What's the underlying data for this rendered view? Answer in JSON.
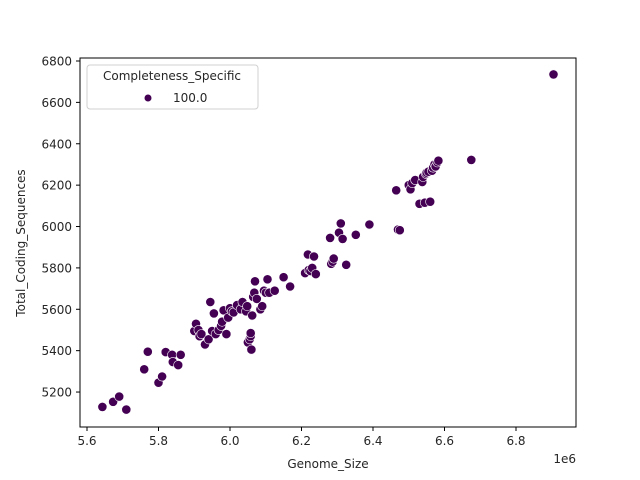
{
  "chart_data": {
    "type": "scatter",
    "title": "",
    "xlabel": "Genome_Size",
    "ylabel": "Total_Coding_Sequences",
    "x_offset_label": "1e6",
    "xlim": [
      5.58,
      6.97
    ],
    "ylim": [
      5020,
      6815
    ],
    "x_ticks": [
      5.6,
      5.8,
      6.0,
      6.2,
      6.4,
      6.6,
      6.8
    ],
    "x_tick_labels": [
      "5.6",
      "5.8",
      "6.0",
      "6.2",
      "6.4",
      "6.6",
      "6.8"
    ],
    "y_ticks": [
      5200,
      5400,
      5600,
      5800,
      6000,
      6200,
      6400,
      6600,
      6800
    ],
    "y_tick_labels": [
      "5200",
      "5400",
      "5600",
      "5800",
      "6000",
      "6200",
      "6400",
      "6600",
      "6800"
    ],
    "grid": false,
    "legend": {
      "title": "Completeness_Specific",
      "position": "upper left",
      "entries": [
        {
          "label": "100.0",
          "color": "#440154"
        }
      ]
    },
    "series": [
      {
        "name": "100.0",
        "color": "#440154",
        "x_units": "1e6",
        "points": [
          [
            5.643,
            5128
          ],
          [
            5.673,
            5153
          ],
          [
            5.69,
            5178
          ],
          [
            5.71,
            5115
          ],
          [
            5.76,
            5310
          ],
          [
            5.77,
            5395
          ],
          [
            5.8,
            5245
          ],
          [
            5.81,
            5275
          ],
          [
            5.82,
            5393
          ],
          [
            5.838,
            5380
          ],
          [
            5.84,
            5345
          ],
          [
            5.855,
            5330
          ],
          [
            5.862,
            5380
          ],
          [
            5.9,
            5495
          ],
          [
            5.905,
            5530
          ],
          [
            5.912,
            5500
          ],
          [
            5.915,
            5470
          ],
          [
            5.92,
            5480
          ],
          [
            5.93,
            5430
          ],
          [
            5.94,
            5455
          ],
          [
            5.945,
            5635
          ],
          [
            5.95,
            5495
          ],
          [
            5.955,
            5580
          ],
          [
            5.96,
            5480
          ],
          [
            5.968,
            5500
          ],
          [
            5.975,
            5520
          ],
          [
            5.978,
            5540
          ],
          [
            5.982,
            5595
          ],
          [
            5.99,
            5480
          ],
          [
            5.995,
            5560
          ],
          [
            6.0,
            5605
          ],
          [
            6.005,
            5590
          ],
          [
            6.01,
            5585
          ],
          [
            6.02,
            5620
          ],
          [
            6.03,
            5600
          ],
          [
            6.035,
            5635
          ],
          [
            6.045,
            5590
          ],
          [
            6.048,
            5615
          ],
          [
            6.05,
            5440
          ],
          [
            6.055,
            5455
          ],
          [
            6.058,
            5470
          ],
          [
            6.058,
            5485
          ],
          [
            6.06,
            5405
          ],
          [
            6.062,
            5570
          ],
          [
            6.065,
            5660
          ],
          [
            6.068,
            5680
          ],
          [
            6.07,
            5735
          ],
          [
            6.075,
            5650
          ],
          [
            6.085,
            5600
          ],
          [
            6.09,
            5615
          ],
          [
            6.095,
            5690
          ],
          [
            6.1,
            5680
          ],
          [
            6.105,
            5745
          ],
          [
            6.11,
            5680
          ],
          [
            6.125,
            5690
          ],
          [
            6.15,
            5755
          ],
          [
            6.168,
            5710
          ],
          [
            6.21,
            5775
          ],
          [
            6.218,
            5865
          ],
          [
            6.22,
            5790
          ],
          [
            6.225,
            5785
          ],
          [
            6.23,
            5800
          ],
          [
            6.235,
            5855
          ],
          [
            6.24,
            5770
          ],
          [
            6.28,
            5945
          ],
          [
            6.283,
            5820
          ],
          [
            6.287,
            5830
          ],
          [
            6.29,
            5845
          ],
          [
            6.305,
            5970
          ],
          [
            6.31,
            6015
          ],
          [
            6.315,
            5940
          ],
          [
            6.325,
            5815
          ],
          [
            6.352,
            5960
          ],
          [
            6.39,
            6010
          ],
          [
            6.465,
            6175
          ],
          [
            6.47,
            5985
          ],
          [
            6.475,
            5982
          ],
          [
            6.5,
            6200
          ],
          [
            6.505,
            6180
          ],
          [
            6.51,
            6210
          ],
          [
            6.518,
            6225
          ],
          [
            6.53,
            6110
          ],
          [
            6.538,
            6215
          ],
          [
            6.54,
            6240
          ],
          [
            6.545,
            6115
          ],
          [
            6.548,
            6255
          ],
          [
            6.55,
            6260
          ],
          [
            6.555,
            6265
          ],
          [
            6.56,
            6120
          ],
          [
            6.565,
            6270
          ],
          [
            6.568,
            6285
          ],
          [
            6.572,
            6300
          ],
          [
            6.575,
            6290
          ],
          [
            6.58,
            6310
          ],
          [
            6.583,
            6318
          ],
          [
            6.675,
            6322
          ],
          [
            6.905,
            6735
          ]
        ]
      }
    ]
  }
}
